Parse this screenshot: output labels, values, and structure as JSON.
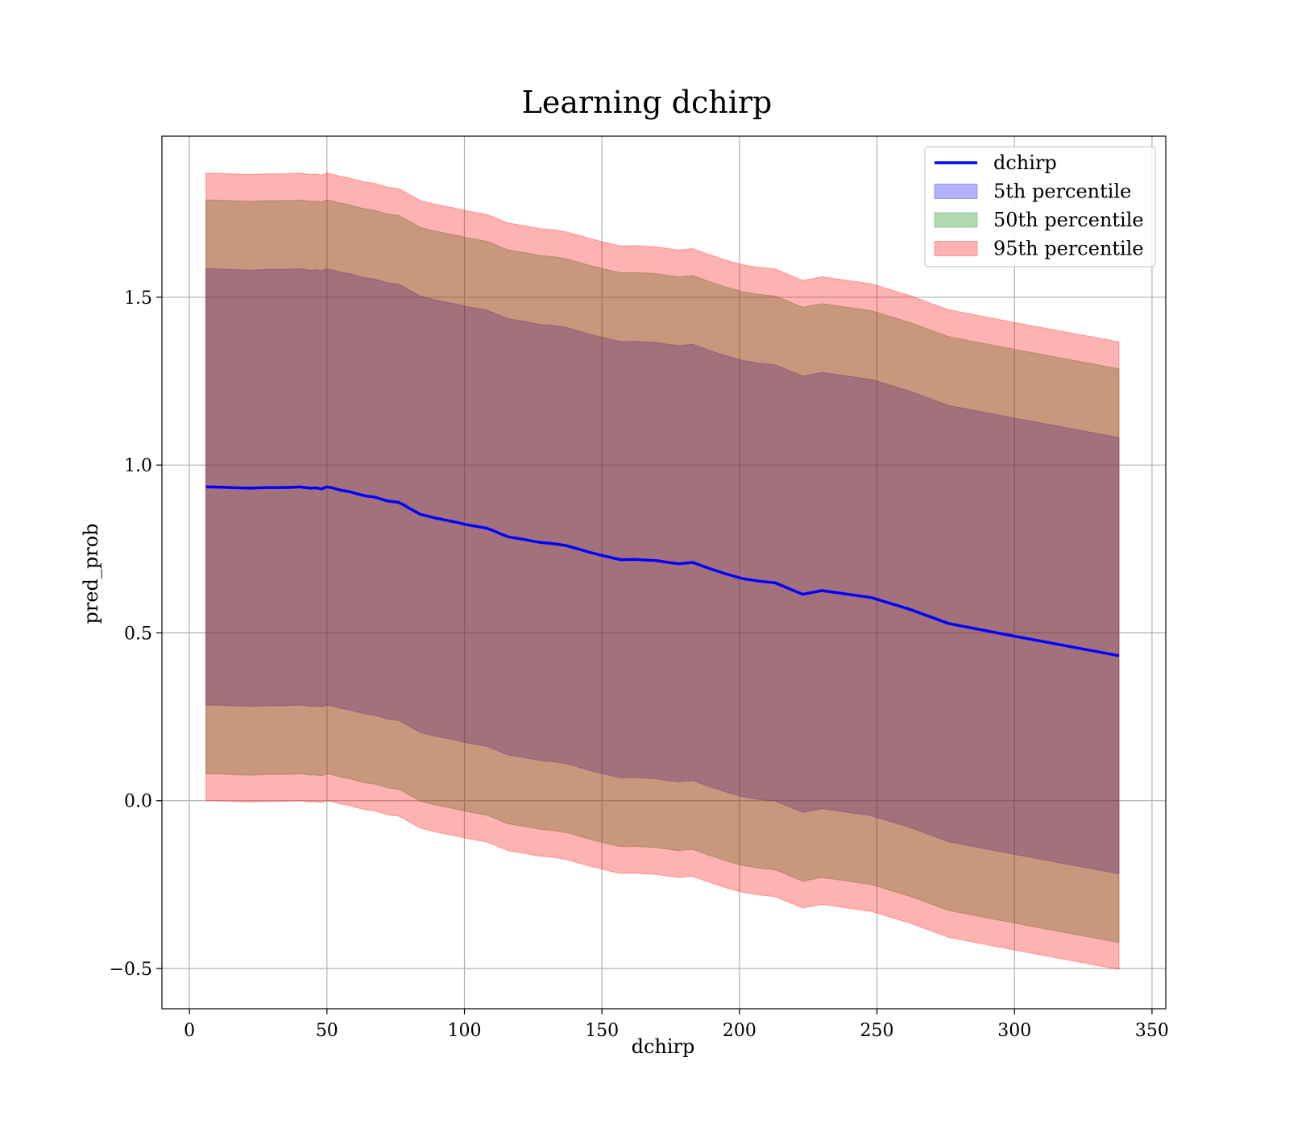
{
  "chart_data": {
    "type": "line",
    "title": "Learning dchirp",
    "xlabel": "dchirp",
    "ylabel": "pred_prob",
    "xlim": [
      -10,
      355
    ],
    "ylim": [
      -0.62,
      1.98
    ],
    "xticks": [
      0,
      50,
      100,
      150,
      200,
      250,
      300,
      350
    ],
    "xtick_labels": [
      "0",
      "50",
      "100",
      "150",
      "200",
      "250",
      "300",
      "350"
    ],
    "yticks": [
      -0.5,
      0.0,
      0.5,
      1.0,
      1.5
    ],
    "ytick_labels": [
      "−0.5",
      "0.0",
      "0.5",
      "1.0",
      "1.5"
    ],
    "grid": true,
    "legend_position": "top-right",
    "legend": [
      {
        "label": "dchirp",
        "kind": "line",
        "color": "#0000ff"
      },
      {
        "label": "5th percentile",
        "kind": "patch",
        "color": "#0000ff"
      },
      {
        "label": "50th percentile",
        "kind": "patch",
        "color": "#008000"
      },
      {
        "label": "95th percentile",
        "kind": "patch",
        "color": "#ff0000"
      }
    ],
    "x": [
      6,
      12,
      18,
      22,
      28,
      34,
      38,
      40,
      42,
      44,
      46,
      48,
      50,
      52,
      55,
      58,
      61,
      64,
      67,
      70,
      72,
      74,
      76,
      78,
      80,
      82,
      84,
      86,
      89,
      92,
      95,
      98,
      101,
      104,
      106,
      108,
      110,
      112,
      114,
      116,
      119,
      122,
      125,
      128,
      131,
      134,
      137,
      140,
      143,
      146,
      150,
      154,
      157,
      162,
      166,
      170,
      174,
      178,
      183,
      189,
      195,
      201,
      207,
      213,
      223,
      230,
      248,
      262,
      276,
      300,
      338
    ],
    "series": [
      {
        "name": "dchirp",
        "color": "#0000ff",
        "values": [
          0.935,
          0.934,
          0.932,
          0.931,
          0.933,
          0.933,
          0.934,
          0.935,
          0.933,
          0.931,
          0.932,
          0.929,
          0.935,
          0.932,
          0.925,
          0.921,
          0.914,
          0.908,
          0.905,
          0.898,
          0.893,
          0.891,
          0.889,
          0.881,
          0.871,
          0.862,
          0.853,
          0.849,
          0.843,
          0.838,
          0.833,
          0.828,
          0.822,
          0.818,
          0.815,
          0.812,
          0.806,
          0.799,
          0.792,
          0.786,
          0.782,
          0.778,
          0.773,
          0.769,
          0.767,
          0.764,
          0.76,
          0.753,
          0.746,
          0.739,
          0.731,
          0.723,
          0.718,
          0.719,
          0.717,
          0.715,
          0.71,
          0.706,
          0.71,
          0.692,
          0.676,
          0.662,
          0.654,
          0.649,
          0.615,
          0.626,
          0.605,
          0.57,
          0.528,
          0.49,
          0.432
        ]
      }
    ],
    "bands": [
      {
        "name": "5th percentile",
        "color": "#0000ff",
        "alpha": 0.3,
        "halfwidth": 0.65
      },
      {
        "name": "50th percentile",
        "color": "#008000",
        "alpha": 0.3,
        "halfwidth": 0.855
      },
      {
        "name": "95th percentile",
        "color": "#ff0000",
        "alpha": 0.3,
        "halfwidth": 0.935
      }
    ]
  }
}
